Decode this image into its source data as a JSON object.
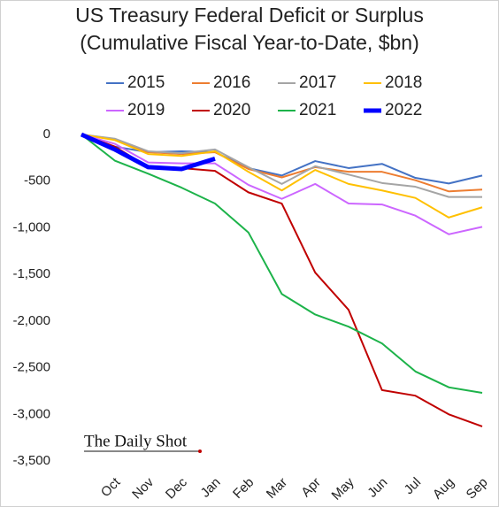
{
  "chart_data": {
    "type": "line",
    "title": "US Treasury Federal Deficit or Surplus",
    "subtitle": "(Cumulative Fiscal Year-to-Date, $bn)",
    "watermark": "The Daily Shot",
    "categories": [
      null,
      "Oct",
      "Nov",
      "Dec",
      "Jan",
      "Feb",
      "Mar",
      "Apr",
      "May",
      "Jun",
      "Jul",
      "Aug",
      "Sep"
    ],
    "ylim": [
      -3500,
      0
    ],
    "yticks": [
      {
        "value": -3500,
        "label": "-3,500"
      },
      {
        "value": -3000,
        "label": "-3,000"
      },
      {
        "value": -2500,
        "label": "-2,500"
      },
      {
        "value": -2000,
        "label": "-2,000"
      },
      {
        "value": -1500,
        "label": "-1,500"
      },
      {
        "value": -1000,
        "label": "-1,000"
      },
      -500,
      0
    ],
    "grid": false,
    "legend": "top",
    "series": [
      {
        "name": "2015",
        "color": "#4472c4",
        "width": 2,
        "values": [
          0,
          -130,
          -190,
          -180,
          -190,
          -360,
          -440,
          -285,
          -360,
          -315,
          -465,
          -525,
          -440
        ]
      },
      {
        "name": "2016",
        "color": "#ed7d31",
        "width": 2,
        "values": [
          0,
          -50,
          -190,
          -210,
          -190,
          -370,
          -460,
          -350,
          -400,
          -400,
          -490,
          -610,
          -590
        ]
      },
      {
        "name": "2017",
        "color": "#a5a5a5",
        "width": 2,
        "values": [
          0,
          -45,
          -180,
          -200,
          -160,
          -350,
          -530,
          -340,
          -430,
          -520,
          -560,
          -670,
          -670
        ]
      },
      {
        "name": "2018",
        "color": "#ffc000",
        "width": 2,
        "values": [
          0,
          -60,
          -210,
          -230,
          -180,
          -400,
          -600,
          -380,
          -530,
          -600,
          -680,
          -890,
          -780
        ]
      },
      {
        "name": "2019",
        "color": "#cc66ff",
        "width": 2,
        "values": [
          0,
          -100,
          -300,
          -310,
          -310,
          -540,
          -690,
          -530,
          -740,
          -750,
          -870,
          -1070,
          -990
        ]
      },
      {
        "name": "2020",
        "color": "#c00000",
        "width": 2,
        "values": [
          0,
          -130,
          -350,
          -360,
          -390,
          -620,
          -740,
          -1480,
          -1880,
          -2740,
          -2800,
          -3000,
          -3130
        ]
      },
      {
        "name": "2021",
        "color": "#1db34a",
        "width": 2,
        "values": [
          0,
          -280,
          -420,
          -570,
          -740,
          -1050,
          -1710,
          -1930,
          -2060,
          -2240,
          -2540,
          -2710,
          -2770
        ]
      },
      {
        "name": "2022",
        "color": "#0000ff",
        "width": 5,
        "values": [
          0,
          -160,
          -350,
          -370,
          -260,
          null,
          null,
          null,
          null,
          null,
          null,
          null,
          null
        ]
      }
    ]
  }
}
